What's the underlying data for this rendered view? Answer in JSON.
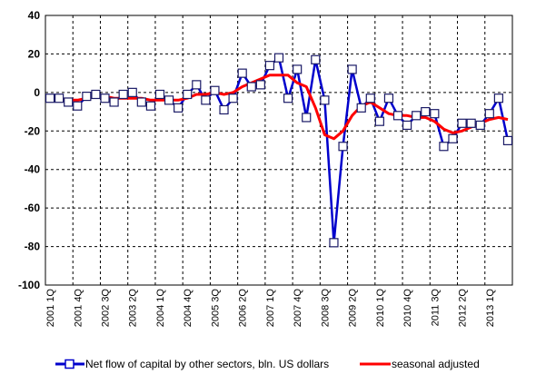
{
  "chart_data": {
    "type": "line",
    "title": "",
    "xlabel": "",
    "ylabel": "",
    "ylim": [
      -100,
      40
    ],
    "yticks": [
      40,
      20,
      0,
      -20,
      -40,
      -60,
      -80,
      -100
    ],
    "grid": true,
    "legend_position": "bottom",
    "x_tick_labels": [
      "2001 1Q",
      "2001 4Q",
      "2002 3Q",
      "2003 2Q",
      "2004 1Q",
      "2004 4Q",
      "2005 3Q",
      "2006 2Q",
      "2007 1Q",
      "2007 4Q",
      "2008 3Q",
      "2009 2Q",
      "2010 1Q",
      "2010 4Q",
      "2011 3Q",
      "2012 2Q",
      "2013 1Q"
    ],
    "x": [
      "2001 1Q",
      "2001 2Q",
      "2001 3Q",
      "2001 4Q",
      "2002 1Q",
      "2002 2Q",
      "2002 3Q",
      "2002 4Q",
      "2003 1Q",
      "2003 2Q",
      "2003 3Q",
      "2003 4Q",
      "2004 1Q",
      "2004 2Q",
      "2004 3Q",
      "2004 4Q",
      "2005 1Q",
      "2005 2Q",
      "2005 3Q",
      "2005 4Q",
      "2006 1Q",
      "2006 2Q",
      "2006 3Q",
      "2006 4Q",
      "2007 1Q",
      "2007 2Q",
      "2007 3Q",
      "2007 4Q",
      "2008 1Q",
      "2008 2Q",
      "2008 3Q",
      "2008 4Q",
      "2009 1Q",
      "2009 2Q",
      "2009 3Q",
      "2009 4Q",
      "2010 1Q",
      "2010 2Q",
      "2010 3Q",
      "2010 4Q",
      "2011 1Q",
      "2011 2Q",
      "2011 3Q",
      "2011 4Q",
      "2012 1Q",
      "2012 2Q",
      "2012 3Q",
      "2012 4Q",
      "2013 1Q",
      "2013 2Q",
      "2013 3Q"
    ],
    "series": [
      {
        "name": "Net flow of capital by other sectors, bln. US dollars",
        "color": "#0000CC",
        "marker": "square",
        "values": [
          -3,
          -3,
          -5,
          -7,
          -2,
          -1,
          -3,
          -5,
          -1,
          0,
          -5,
          -7,
          -1,
          -4,
          -8,
          -1,
          4,
          -4,
          1,
          -9,
          -3,
          10,
          3,
          4,
          14,
          18,
          -3,
          12,
          -13,
          17,
          -4,
          -78,
          -28,
          12,
          -8,
          -3,
          -15,
          -3,
          -12,
          -17,
          -12,
          -10,
          -11,
          -28,
          -24,
          -16,
          -16,
          -17,
          -11,
          -3,
          -25
        ]
      },
      {
        "name": "seasonal adjusted",
        "color": "#FF0000",
        "marker": "none",
        "values": [
          -3,
          -3,
          -4,
          -4,
          -3,
          -2,
          -2,
          -3,
          -3,
          -3,
          -3,
          -4,
          -4,
          -4,
          -4,
          -3,
          -1,
          -1,
          0,
          -1,
          0,
          3,
          5,
          7,
          9,
          9,
          9,
          5,
          3,
          -8,
          -22,
          -24,
          -20,
          -12,
          -7,
          -5,
          -8,
          -11,
          -12,
          -12,
          -13,
          -13,
          -15,
          -19,
          -21,
          -20,
          -18,
          -16,
          -14,
          -13,
          -14
        ]
      }
    ]
  }
}
